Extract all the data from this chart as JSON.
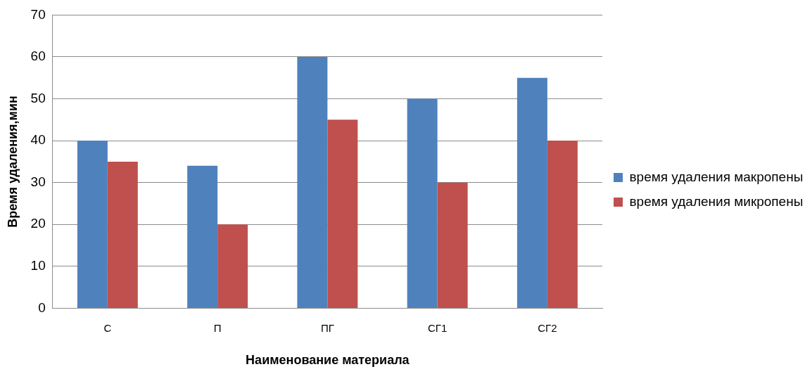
{
  "chart_data": {
    "type": "bar",
    "xlabel": "Наименование материала",
    "ylabel": "Время удаления,мин",
    "categories": [
      "С",
      "П",
      "ПГ",
      "СГ1",
      "СГ2"
    ],
    "series": [
      {
        "name": "время удаления макропены",
        "color": "#4f81bd",
        "values": [
          40,
          34,
          60,
          50,
          55
        ]
      },
      {
        "name": "время удаления микропены",
        "color": "#c0504d",
        "values": [
          35,
          20,
          45,
          30,
          40
        ]
      }
    ],
    "ylim": [
      0,
      70
    ],
    "yticks": [
      0,
      10,
      20,
      30,
      40,
      50,
      60,
      70
    ],
    "grid": "y",
    "legend": "right"
  }
}
